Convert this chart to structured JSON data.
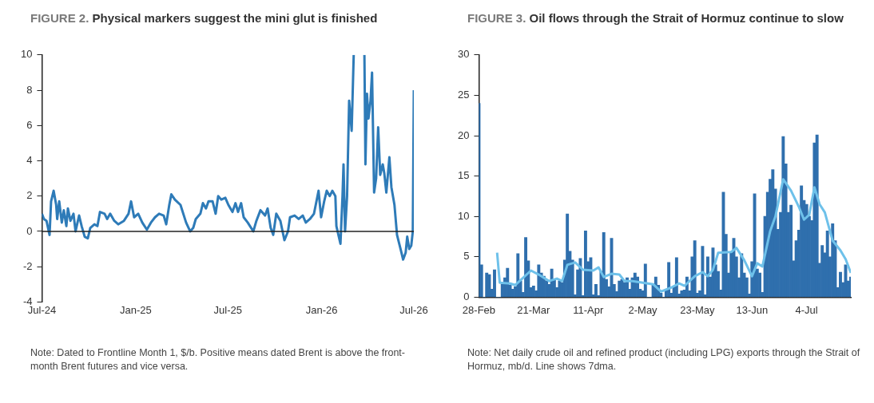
{
  "chart_data": [
    {
      "type": "line",
      "title": "FIGURE 2. Physical markers suggest the mini glut is finished",
      "annotations": [
        "Note: Dated to Frontline Month 1, $/b. Positive means dated Brent is above the front-month Brent futures and vice versa."
      ],
      "x": [
        "2024-07-01",
        "2024-07-05",
        "2024-07-10",
        "2024-07-16",
        "2024-07-19",
        "2024-07-24",
        "2024-07-29",
        "2024-07-31",
        "2024-08-04",
        "2024-08-09",
        "2024-08-13",
        "2024-08-18",
        "2024-08-21",
        "2024-08-26",
        "2024-09-01",
        "2024-09-05",
        "2024-09-12",
        "2024-09-17",
        "2024-09-23",
        "2024-09-29",
        "2024-10-04",
        "2024-10-12",
        "2024-10-18",
        "2024-10-23",
        "2024-11-01",
        "2024-11-06",
        "2024-11-12",
        "2024-11-20",
        "2024-11-28",
        "2024-12-09",
        "2024-12-18",
        "2024-12-23",
        "2024-12-29",
        "2025-01-06",
        "2025-01-14",
        "2025-01-23",
        "2025-01-31",
        "2025-02-08",
        "2025-02-16",
        "2025-02-25",
        "2025-03-02",
        "2025-03-08",
        "2025-03-12",
        "2025-03-19",
        "2025-03-30",
        "2025-04-10",
        "2025-04-18",
        "2025-04-24",
        "2025-04-29",
        "2025-05-08",
        "2025-05-13",
        "2025-05-19",
        "2025-05-24",
        "2025-06-01",
        "2025-06-07",
        "2025-06-12",
        "2025-06-18",
        "2025-06-26",
        "2025-07-02",
        "2025-07-10",
        "2025-07-16",
        "2025-07-21",
        "2025-07-27",
        "2025-08-01",
        "2025-08-09",
        "2025-08-20",
        "2025-08-26",
        "2025-09-03",
        "2025-09-12",
        "2025-09-17",
        "2025-09-23",
        "2025-09-28",
        "2025-10-04",
        "2025-10-12",
        "2025-10-20",
        "2025-10-27",
        "2025-10-31",
        "2025-11-09",
        "2025-11-17",
        "2025-11-25",
        "2025-12-01",
        "2025-12-09",
        "2025-12-17",
        "2025-12-26",
        "2025-12-31",
        "2026-01-06",
        "2026-01-11",
        "2026-01-17",
        "2026-01-22",
        "2026-01-28",
        "2026-01-30",
        "2026-02-07",
        "2026-02-11",
        "2026-02-13",
        "2026-02-16",
        "2026-02-20",
        "2026-02-24",
        "2026-03-01",
        "2026-03-05",
        "2026-03-16",
        "2026-03-26",
        "2026-03-28",
        "2026-03-31",
        "2026-04-03",
        "2026-04-07",
        "2026-04-10",
        "2026-04-14",
        "2026-04-18",
        "2026-04-22",
        "2026-04-26",
        "2026-05-01",
        "2026-05-04",
        "2026-05-08",
        "2026-05-14",
        "2026-05-18",
        "2026-05-24",
        "2026-05-29",
        "2026-06-05",
        "2026-06-10",
        "2026-06-15",
        "2026-06-18",
        "2026-06-22",
        "2026-06-26",
        "2026-06-29",
        "2026-07-01"
      ],
      "series": [
        {
          "color": "#2e7bb8",
          "values": [
            1.0,
            0.7,
            0.6,
            -0.2,
            1.7,
            2.3,
            1.5,
            0.7,
            1.7,
            0.5,
            1.2,
            0.3,
            1.3,
            0.6,
            1.0,
            0.0,
            0.9,
            0.3,
            -0.3,
            -0.4,
            0.2,
            0.4,
            0.3,
            1.1,
            1.0,
            0.7,
            1.0,
            0.6,
            0.4,
            0.6,
            1.0,
            1.7,
            0.8,
            1.0,
            0.5,
            0.1,
            0.5,
            0.8,
            1.0,
            0.9,
            0.4,
            1.5,
            2.1,
            1.8,
            1.5,
            0.5,
            0.0,
            0.2,
            0.7,
            1.0,
            1.6,
            1.3,
            1.7,
            1.7,
            1.0,
            2.0,
            1.8,
            1.9,
            1.5,
            1.1,
            1.6,
            1.1,
            1.6,
            0.8,
            0.5,
            0.0,
            0.6,
            1.2,
            0.9,
            1.3,
            0.2,
            -0.2,
            1.0,
            0.6,
            -0.5,
            0.0,
            0.8,
            0.9,
            0.7,
            0.9,
            0.5,
            0.7,
            1.0,
            2.3,
            0.8,
            1.7,
            2.3,
            2.0,
            2.3,
            2.0,
            0.3,
            -0.7,
            2.0,
            3.8,
            0.0,
            2.0,
            7.4,
            5.7,
            10,
            null,
            10,
            3.8,
            7.8,
            6.4,
            7.4,
            9.0,
            2.2,
            3.0,
            5.9,
            3.2,
            3.8,
            3.3,
            2.2,
            4.2,
            2.5,
            1.5,
            -0.2,
            -1.0,
            -1.6,
            -1.2,
            -0.3,
            -1.0,
            -0.8,
            0.0,
            8.0
          ]
        }
      ],
      "xlim": [
        "2024-07-01",
        "2026-07-01"
      ],
      "xticks": [
        {
          "value": "2024-07-01",
          "label": "Jul-24"
        },
        {
          "value": "2025-01-01",
          "label": "Jan-25"
        },
        {
          "value": "2025-07-01",
          "label": "Jul-25"
        },
        {
          "value": "2026-01-01",
          "label": "Jan-26"
        },
        {
          "value": "2026-07-01",
          "label": "Jul-26"
        }
      ],
      "ylim": [
        -4,
        10
      ],
      "yticks": [
        -4,
        -2,
        0,
        2,
        4,
        6,
        8,
        10
      ],
      "ref_lines": [
        {
          "axis": "y",
          "value": 0,
          "color": "#222222"
        }
      ]
    },
    {
      "type": "bar",
      "title": "FIGURE 3. Oil flows through the Strait of Hormuz continue to slow",
      "annotations": [
        "Note: Net daily crude oil and refined product (including LPG) exports through the Strait of Hormuz, mb/d. Line shows 7dma."
      ],
      "x": [
        "--02-28",
        "--03-01",
        "--03-02",
        "--03-03",
        "--03-04",
        "--03-05",
        "--03-06",
        "--03-07",
        "--03-08",
        "--03-09",
        "--03-10",
        "--03-11",
        "--03-12",
        "--03-13",
        "--03-14",
        "--03-15",
        "--03-16",
        "--03-17",
        "--03-18",
        "--03-19",
        "--03-20",
        "--03-21",
        "--03-22",
        "--03-23",
        "--03-24",
        "--03-25",
        "--03-26",
        "--03-27",
        "--03-28",
        "--03-29",
        "--03-30",
        "--03-31",
        "--04-01",
        "--04-02",
        "--04-03",
        "--04-04",
        "--04-05",
        "--04-06",
        "--04-07",
        "--04-08",
        "--04-09",
        "--04-10",
        "--04-11",
        "--04-12",
        "--04-13",
        "--04-14",
        "--04-15",
        "--04-16",
        "--04-17",
        "--04-18",
        "--04-19",
        "--04-20",
        "--04-21",
        "--04-22",
        "--04-23",
        "--04-24",
        "--04-25",
        "--04-26",
        "--04-27",
        "--04-28",
        "--04-29",
        "--04-30",
        "--05-01",
        "--05-02",
        "--05-03",
        "--05-04",
        "--05-05",
        "--05-06",
        "--05-07",
        "--05-08",
        "--05-09",
        "--05-10",
        "--05-11",
        "--05-12",
        "--05-13",
        "--05-14",
        "--05-15",
        "--05-16",
        "--05-17",
        "--05-18",
        "--05-19",
        "--05-20",
        "--05-21",
        "--05-22",
        "--05-23",
        "--05-24",
        "--05-25",
        "--05-26",
        "--05-27",
        "--05-28",
        "--05-29",
        "--05-30",
        "--05-31",
        "--06-01",
        "--06-02",
        "--06-03",
        "--06-04",
        "--06-05",
        "--06-06",
        "--06-07",
        "--06-08",
        "--06-09",
        "--06-10",
        "--06-11",
        "--06-12",
        "--06-13",
        "--06-14",
        "--06-15",
        "--06-16",
        "--06-17",
        "--06-18",
        "--06-19",
        "--06-20",
        "--06-21",
        "--06-22",
        "--06-23",
        "--06-24",
        "--06-25",
        "--06-26",
        "--06-27",
        "--06-28",
        "--06-29",
        "--06-30",
        "--07-01",
        "--07-02",
        "--07-03",
        "--07-04",
        "--07-05",
        "--07-06",
        "--07-07",
        "--07-08",
        "--07-09",
        "--07-10",
        "--07-11",
        "--07-12",
        "--07-13",
        "--07-14",
        "--07-15",
        "--07-16",
        "--07-17",
        "--07-18",
        "--07-19",
        "--07-20",
        "--07-21"
      ],
      "series": [
        {
          "type": "bar",
          "color": "#2f6fad",
          "values": [
            24,
            4,
            0,
            3,
            2.8,
            1,
            3.4,
            0,
            0,
            1.6,
            2.4,
            3.6,
            1.5,
            1,
            1.3,
            5.4,
            2,
            0.6,
            7.4,
            4.5,
            1.2,
            1.4,
            0.8,
            4,
            3,
            2.6,
            2,
            1.6,
            3.5,
            2.2,
            1.2,
            2,
            1.8,
            4.6,
            10.3,
            5.7,
            4.6,
            0.3,
            3.4,
            4.8,
            0.2,
            8.2,
            4.4,
            4.9,
            0.3,
            1.6,
            0.2,
            3.2,
            8,
            2.2,
            1.3,
            7.3,
            1.6,
            0.7,
            2,
            2.2,
            1.8,
            2.4,
            1,
            2.4,
            3,
            2.5,
            1,
            0.8,
            4.1,
            0,
            0,
            1.6,
            2.5,
            1.5,
            0.5,
            0,
            0.9,
            4.3,
            0.5,
            1.3,
            4.9,
            0.4,
            0.8,
            0.9,
            2.5,
            0.8,
            5,
            7,
            0.5,
            0.8,
            6.3,
            0.3,
            5,
            2.5,
            6.1,
            4,
            3.2,
            0.9,
            13,
            7.8,
            3,
            5.5,
            7.3,
            5,
            2.4,
            5.4,
            3,
            2.4,
            0.4,
            4.4,
            12.8,
            3.5,
            3,
            0.6,
            10,
            13,
            14.6,
            15.8,
            13.4,
            8.4,
            10.5,
            19.9,
            16.5,
            10.5,
            11.4,
            4.5,
            7,
            8.3,
            13.8,
            12,
            11.5,
            10,
            9.5,
            19.1,
            20.1,
            4.2,
            6.4,
            5.5,
            8.2,
            5,
            9.1,
            7,
            1.2,
            3.1,
            1.8,
            4,
            2,
            2.5
          ]
        },
        {
          "type": "line",
          "color": "#6ec1ea",
          "x": [
            "--03-07",
            "--03-08",
            "--03-12",
            "--03-14",
            "--03-17",
            "--03-20",
            "--03-23",
            "--03-27",
            "--03-30",
            "--04-01",
            "--04-03",
            "--04-06",
            "--04-09",
            "--04-13",
            "--04-15",
            "--04-17",
            "--04-20",
            "--04-23",
            "--04-25",
            "--04-28",
            "--05-02",
            "--05-06",
            "--05-09",
            "--05-13",
            "--05-16",
            "--05-18",
            "--05-22",
            "--05-25",
            "--05-27",
            "--05-29",
            "--05-31",
            "--06-05",
            "--06-07",
            "--06-10",
            "--06-13",
            "--06-15",
            "--06-17",
            "--06-20",
            "--06-22",
            "--06-25",
            "--06-28",
            "--07-01",
            "--07-03",
            "--07-05",
            "--07-07",
            "--07-09",
            "--07-11",
            "--07-14",
            "--07-17",
            "--07-19",
            "--07-21"
          ],
          "values": [
            5.5,
            1.8,
            1.7,
            1.5,
            2.4,
            3.3,
            2.8,
            2,
            2.3,
            2,
            4,
            4.3,
            3.4,
            3.3,
            3.7,
            2.5,
            2.9,
            2.8,
            2,
            2,
            1.8,
            1.6,
            0.7,
            1.2,
            1.7,
            1.4,
            2.6,
            3.1,
            2.6,
            3.4,
            5.5,
            5.6,
            6.1,
            4.6,
            2.6,
            4.2,
            3.8,
            8.2,
            10,
            14.6,
            13.2,
            11.2,
            9.6,
            10.2,
            13.6,
            11.5,
            10.5,
            7,
            5.8,
            4.7,
            3
          ]
        }
      ],
      "xlim": [
        "--02-28",
        "--07-21"
      ],
      "xticks": [
        {
          "value": "--02-28",
          "label": "28-Feb"
        },
        {
          "value": "--03-21",
          "label": "21-Mar"
        },
        {
          "value": "--04-11",
          "label": "11-Apr"
        },
        {
          "value": "--05-02",
          "label": "2-May"
        },
        {
          "value": "--05-23",
          "label": "23-May"
        },
        {
          "value": "--06-13",
          "label": "13-Jun"
        },
        {
          "value": "--07-04",
          "label": "4-Jul"
        }
      ],
      "ylim": [
        0,
        30
      ],
      "yticks": [
        0,
        5,
        10,
        15,
        20,
        25,
        30
      ]
    }
  ]
}
